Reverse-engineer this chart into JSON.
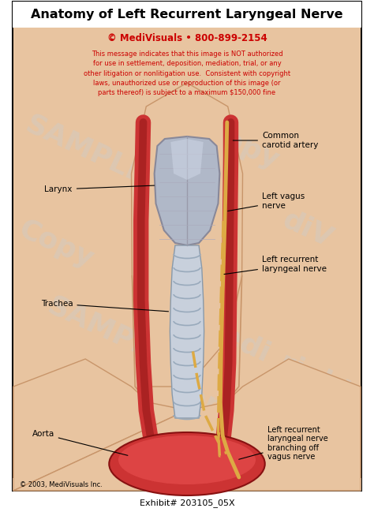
{
  "title": "Anatomy of Left Recurrent Laryngeal Nerve",
  "copyright_line1": "© MediVisuals • 800-899-2154",
  "copyright_body": "This message indicates that this image is NOT authorized\nfor use in settlement, deposition, mediation, trial, or any\nother litigation or nonlitigation use.  Consistent with copyright\nlaws, unauthorized use or reproduction of this image (or\nparts thereof) is subject to a maximum $150,000 fine",
  "footer_left": "© 2003, MediVisuals Inc.",
  "exhibit": "Exhibit# 203105_05X",
  "labels": {
    "larynx": "Larynx",
    "trachea": "Trachea",
    "aorta": "Aorta",
    "common_carotid": "Common\ncarotid artery",
    "left_vagus": "Left vagus\nnerve",
    "left_recurrent": "Left recurrent\nlaryngeal nerve",
    "left_recurrent_branch": "Left recurrent\nlaryngeal nerve\nbranching off\nvagus nerve"
  },
  "skin_color": "#e8c4a0",
  "dark_skin": "#c8956a",
  "artery_color": "#cc3333",
  "artery_dark": "#aa2222",
  "nerve_color": "#ddaa44",
  "larynx_color": "#b0b8c8",
  "larynx_edge": "#888899",
  "trachea_color": "#c8d0dc",
  "trachea_edge": "#8899aa",
  "watermark_color": "#cccccc",
  "box_bg": "#ffffff",
  "red_text": "#cc0000"
}
